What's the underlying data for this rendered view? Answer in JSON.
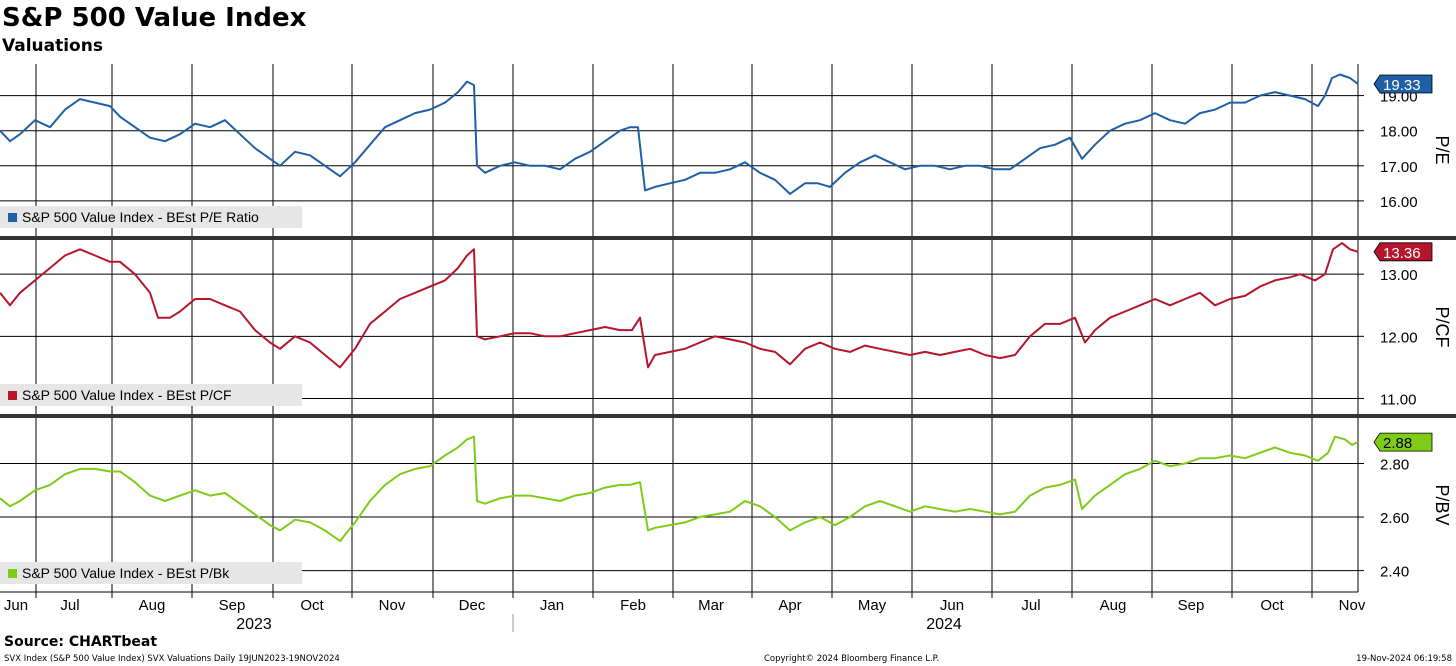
{
  "title": "S&P 500 Value Index",
  "subtitle": "Valuations",
  "source": "Source: CHARTbeat",
  "footer": {
    "left": "SVX Index (S&P 500 Value Index) SVX Valuations  Daily 19JUN2023-19NOV2024",
    "center": "Copyright© 2024 Bloomberg Finance L.P.",
    "right": "19-Nov-2024 06:19:58"
  },
  "chart_data": {
    "type": "line",
    "x_labels": [
      "Jun",
      "Jul",
      "Aug",
      "Sep",
      "Oct",
      "Nov",
      "Dec",
      "Jan",
      "Feb",
      "Mar",
      "Apr",
      "May",
      "Jun",
      "Jul",
      "Aug",
      "Sep",
      "Oct",
      "Nov"
    ],
    "year_labels": [
      "2023",
      "2024"
    ],
    "grid": true,
    "panels": [
      {
        "axis_title": "P/E",
        "ylim": [
          15.0,
          19.9
        ],
        "ticks": [
          "16.00",
          "17.00",
          "18.00",
          "19.00"
        ],
        "legend": "S&P 500 Value Index - BEst P/E Ratio",
        "legend_position": "bottom-left",
        "color": "#1f5fa6",
        "last_label": "19.33",
        "points": [
          [
            0,
            18.0
          ],
          [
            10,
            17.7
          ],
          [
            20,
            17.9
          ],
          [
            35,
            18.3
          ],
          [
            50,
            18.1
          ],
          [
            65,
            18.6
          ],
          [
            80,
            18.9
          ],
          [
            95,
            18.8
          ],
          [
            110,
            18.7
          ],
          [
            120,
            18.4
          ],
          [
            135,
            18.1
          ],
          [
            150,
            17.8
          ],
          [
            165,
            17.7
          ],
          [
            180,
            17.9
          ],
          [
            195,
            18.2
          ],
          [
            210,
            18.1
          ],
          [
            225,
            18.3
          ],
          [
            240,
            17.9
          ],
          [
            255,
            17.5
          ],
          [
            270,
            17.2
          ],
          [
            280,
            17.0
          ],
          [
            295,
            17.4
          ],
          [
            310,
            17.3
          ],
          [
            325,
            17.0
          ],
          [
            340,
            16.7
          ],
          [
            355,
            17.1
          ],
          [
            370,
            17.6
          ],
          [
            385,
            18.1
          ],
          [
            400,
            18.3
          ],
          [
            415,
            18.5
          ],
          [
            430,
            18.6
          ],
          [
            445,
            18.8
          ],
          [
            458,
            19.1
          ],
          [
            467,
            19.4
          ],
          [
            474,
            19.3
          ],
          [
            477,
            17.0
          ],
          [
            485,
            16.8
          ],
          [
            500,
            17.0
          ],
          [
            515,
            17.1
          ],
          [
            530,
            17.0
          ],
          [
            545,
            17.0
          ],
          [
            560,
            16.9
          ],
          [
            575,
            17.2
          ],
          [
            590,
            17.4
          ],
          [
            605,
            17.7
          ],
          [
            620,
            18.0
          ],
          [
            630,
            18.1
          ],
          [
            638,
            18.1
          ],
          [
            645,
            16.3
          ],
          [
            655,
            16.4
          ],
          [
            670,
            16.5
          ],
          [
            685,
            16.6
          ],
          [
            700,
            16.8
          ],
          [
            715,
            16.8
          ],
          [
            730,
            16.9
          ],
          [
            745,
            17.1
          ],
          [
            760,
            16.8
          ],
          [
            775,
            16.6
          ],
          [
            790,
            16.2
          ],
          [
            805,
            16.5
          ],
          [
            818,
            16.5
          ],
          [
            830,
            16.4
          ],
          [
            845,
            16.8
          ],
          [
            860,
            17.1
          ],
          [
            875,
            17.3
          ],
          [
            890,
            17.1
          ],
          [
            905,
            16.9
          ],
          [
            920,
            17.0
          ],
          [
            935,
            17.0
          ],
          [
            950,
            16.9
          ],
          [
            965,
            17.0
          ],
          [
            980,
            17.0
          ],
          [
            995,
            16.9
          ],
          [
            1010,
            16.9
          ],
          [
            1025,
            17.2
          ],
          [
            1040,
            17.5
          ],
          [
            1055,
            17.6
          ],
          [
            1070,
            17.8
          ],
          [
            1082,
            17.2
          ],
          [
            1095,
            17.6
          ],
          [
            1110,
            18.0
          ],
          [
            1125,
            18.2
          ],
          [
            1140,
            18.3
          ],
          [
            1155,
            18.5
          ],
          [
            1170,
            18.3
          ],
          [
            1185,
            18.2
          ],
          [
            1200,
            18.5
          ],
          [
            1215,
            18.6
          ],
          [
            1230,
            18.8
          ],
          [
            1245,
            18.8
          ],
          [
            1260,
            19.0
          ],
          [
            1275,
            19.1
          ],
          [
            1290,
            19.0
          ],
          [
            1305,
            18.9
          ],
          [
            1318,
            18.7
          ],
          [
            1325,
            19.0
          ],
          [
            1332,
            19.5
          ],
          [
            1340,
            19.6
          ],
          [
            1350,
            19.5
          ],
          [
            1358,
            19.33
          ]
        ]
      },
      {
        "axis_title": "P/CF",
        "ylim": [
          10.75,
          13.55
        ],
        "ticks": [
          "11.00",
          "12.00",
          "13.00"
        ],
        "legend": "S&P 500 Value Index - BEst P/CF",
        "legend_position": "bottom-left",
        "color": "#b5162b",
        "last_label": "13.36",
        "points": [
          [
            0,
            12.7
          ],
          [
            10,
            12.5
          ],
          [
            20,
            12.7
          ],
          [
            35,
            12.9
          ],
          [
            50,
            13.1
          ],
          [
            65,
            13.3
          ],
          [
            80,
            13.4
          ],
          [
            95,
            13.3
          ],
          [
            110,
            13.2
          ],
          [
            120,
            13.2
          ],
          [
            135,
            13.0
          ],
          [
            150,
            12.7
          ],
          [
            158,
            12.3
          ],
          [
            170,
            12.3
          ],
          [
            180,
            12.4
          ],
          [
            195,
            12.6
          ],
          [
            210,
            12.6
          ],
          [
            225,
            12.5
          ],
          [
            240,
            12.4
          ],
          [
            255,
            12.1
          ],
          [
            270,
            11.9
          ],
          [
            280,
            11.8
          ],
          [
            295,
            12.0
          ],
          [
            310,
            11.9
          ],
          [
            325,
            11.7
          ],
          [
            340,
            11.5
          ],
          [
            355,
            11.8
          ],
          [
            370,
            12.2
          ],
          [
            385,
            12.4
          ],
          [
            400,
            12.6
          ],
          [
            415,
            12.7
          ],
          [
            430,
            12.8
          ],
          [
            445,
            12.9
          ],
          [
            458,
            13.1
          ],
          [
            467,
            13.3
          ],
          [
            474,
            13.4
          ],
          [
            477,
            12.0
          ],
          [
            485,
            11.95
          ],
          [
            500,
            12.0
          ],
          [
            515,
            12.05
          ],
          [
            530,
            12.05
          ],
          [
            545,
            12.0
          ],
          [
            560,
            12.0
          ],
          [
            575,
            12.05
          ],
          [
            590,
            12.1
          ],
          [
            605,
            12.15
          ],
          [
            620,
            12.1
          ],
          [
            632,
            12.1
          ],
          [
            640,
            12.3
          ],
          [
            648,
            11.5
          ],
          [
            655,
            11.7
          ],
          [
            670,
            11.75
          ],
          [
            685,
            11.8
          ],
          [
            700,
            11.9
          ],
          [
            715,
            12.0
          ],
          [
            730,
            11.95
          ],
          [
            745,
            11.9
          ],
          [
            760,
            11.8
          ],
          [
            775,
            11.75
          ],
          [
            790,
            11.55
          ],
          [
            805,
            11.8
          ],
          [
            820,
            11.9
          ],
          [
            835,
            11.8
          ],
          [
            850,
            11.75
          ],
          [
            865,
            11.85
          ],
          [
            880,
            11.8
          ],
          [
            895,
            11.75
          ],
          [
            910,
            11.7
          ],
          [
            925,
            11.75
          ],
          [
            940,
            11.7
          ],
          [
            955,
            11.75
          ],
          [
            970,
            11.8
          ],
          [
            985,
            11.7
          ],
          [
            1000,
            11.65
          ],
          [
            1015,
            11.7
          ],
          [
            1030,
            12.0
          ],
          [
            1045,
            12.2
          ],
          [
            1060,
            12.2
          ],
          [
            1075,
            12.3
          ],
          [
            1085,
            11.9
          ],
          [
            1095,
            12.1
          ],
          [
            1110,
            12.3
          ],
          [
            1125,
            12.4
          ],
          [
            1140,
            12.5
          ],
          [
            1155,
            12.6
          ],
          [
            1170,
            12.5
          ],
          [
            1185,
            12.6
          ],
          [
            1200,
            12.7
          ],
          [
            1215,
            12.5
          ],
          [
            1230,
            12.6
          ],
          [
            1245,
            12.65
          ],
          [
            1260,
            12.8
          ],
          [
            1275,
            12.9
          ],
          [
            1290,
            12.95
          ],
          [
            1300,
            13.0
          ],
          [
            1315,
            12.9
          ],
          [
            1325,
            13.0
          ],
          [
            1333,
            13.4
          ],
          [
            1342,
            13.5
          ],
          [
            1350,
            13.4
          ],
          [
            1358,
            13.36
          ]
        ]
      },
      {
        "axis_title": "P/BV",
        "ylim": [
          2.32,
          2.97
        ],
        "ticks": [
          "2.40",
          "2.60",
          "2.80"
        ],
        "legend": "S&P 500 Value Index - BEst P/Bk",
        "legend_position": "bottom-left",
        "color": "#7fcc18",
        "last_label": "2.88",
        "points": [
          [
            0,
            2.67
          ],
          [
            10,
            2.64
          ],
          [
            20,
            2.66
          ],
          [
            35,
            2.7
          ],
          [
            50,
            2.72
          ],
          [
            65,
            2.76
          ],
          [
            80,
            2.78
          ],
          [
            95,
            2.78
          ],
          [
            110,
            2.77
          ],
          [
            120,
            2.77
          ],
          [
            135,
            2.73
          ],
          [
            150,
            2.68
          ],
          [
            165,
            2.66
          ],
          [
            180,
            2.68
          ],
          [
            195,
            2.7
          ],
          [
            210,
            2.68
          ],
          [
            225,
            2.69
          ],
          [
            240,
            2.65
          ],
          [
            255,
            2.61
          ],
          [
            270,
            2.57
          ],
          [
            280,
            2.55
          ],
          [
            295,
            2.59
          ],
          [
            310,
            2.58
          ],
          [
            325,
            2.55
          ],
          [
            340,
            2.51
          ],
          [
            355,
            2.58
          ],
          [
            370,
            2.66
          ],
          [
            385,
            2.72
          ],
          [
            400,
            2.76
          ],
          [
            415,
            2.78
          ],
          [
            430,
            2.79
          ],
          [
            445,
            2.83
          ],
          [
            458,
            2.86
          ],
          [
            467,
            2.89
          ],
          [
            474,
            2.9
          ],
          [
            477,
            2.66
          ],
          [
            485,
            2.65
          ],
          [
            500,
            2.67
          ],
          [
            515,
            2.68
          ],
          [
            530,
            2.68
          ],
          [
            545,
            2.67
          ],
          [
            560,
            2.66
          ],
          [
            575,
            2.68
          ],
          [
            590,
            2.69
          ],
          [
            605,
            2.71
          ],
          [
            620,
            2.72
          ],
          [
            630,
            2.72
          ],
          [
            640,
            2.73
          ],
          [
            648,
            2.55
          ],
          [
            655,
            2.56
          ],
          [
            670,
            2.57
          ],
          [
            685,
            2.58
          ],
          [
            700,
            2.6
          ],
          [
            715,
            2.61
          ],
          [
            730,
            2.62
          ],
          [
            745,
            2.66
          ],
          [
            760,
            2.64
          ],
          [
            775,
            2.6
          ],
          [
            790,
            2.55
          ],
          [
            805,
            2.58
          ],
          [
            820,
            2.6
          ],
          [
            835,
            2.57
          ],
          [
            850,
            2.6
          ],
          [
            865,
            2.64
          ],
          [
            880,
            2.66
          ],
          [
            895,
            2.64
          ],
          [
            910,
            2.62
          ],
          [
            925,
            2.64
          ],
          [
            940,
            2.63
          ],
          [
            955,
            2.62
          ],
          [
            970,
            2.63
          ],
          [
            985,
            2.62
          ],
          [
            1000,
            2.61
          ],
          [
            1015,
            2.62
          ],
          [
            1030,
            2.68
          ],
          [
            1045,
            2.71
          ],
          [
            1060,
            2.72
          ],
          [
            1075,
            2.74
          ],
          [
            1082,
            2.63
          ],
          [
            1095,
            2.68
          ],
          [
            1110,
            2.72
          ],
          [
            1125,
            2.76
          ],
          [
            1140,
            2.78
          ],
          [
            1155,
            2.81
          ],
          [
            1170,
            2.79
          ],
          [
            1185,
            2.8
          ],
          [
            1200,
            2.82
          ],
          [
            1215,
            2.82
          ],
          [
            1230,
            2.83
          ],
          [
            1245,
            2.82
          ],
          [
            1260,
            2.84
          ],
          [
            1275,
            2.86
          ],
          [
            1290,
            2.84
          ],
          [
            1305,
            2.83
          ],
          [
            1318,
            2.81
          ],
          [
            1328,
            2.84
          ],
          [
            1335,
            2.9
          ],
          [
            1345,
            2.89
          ],
          [
            1352,
            2.87
          ],
          [
            1358,
            2.88
          ]
        ]
      }
    ]
  }
}
